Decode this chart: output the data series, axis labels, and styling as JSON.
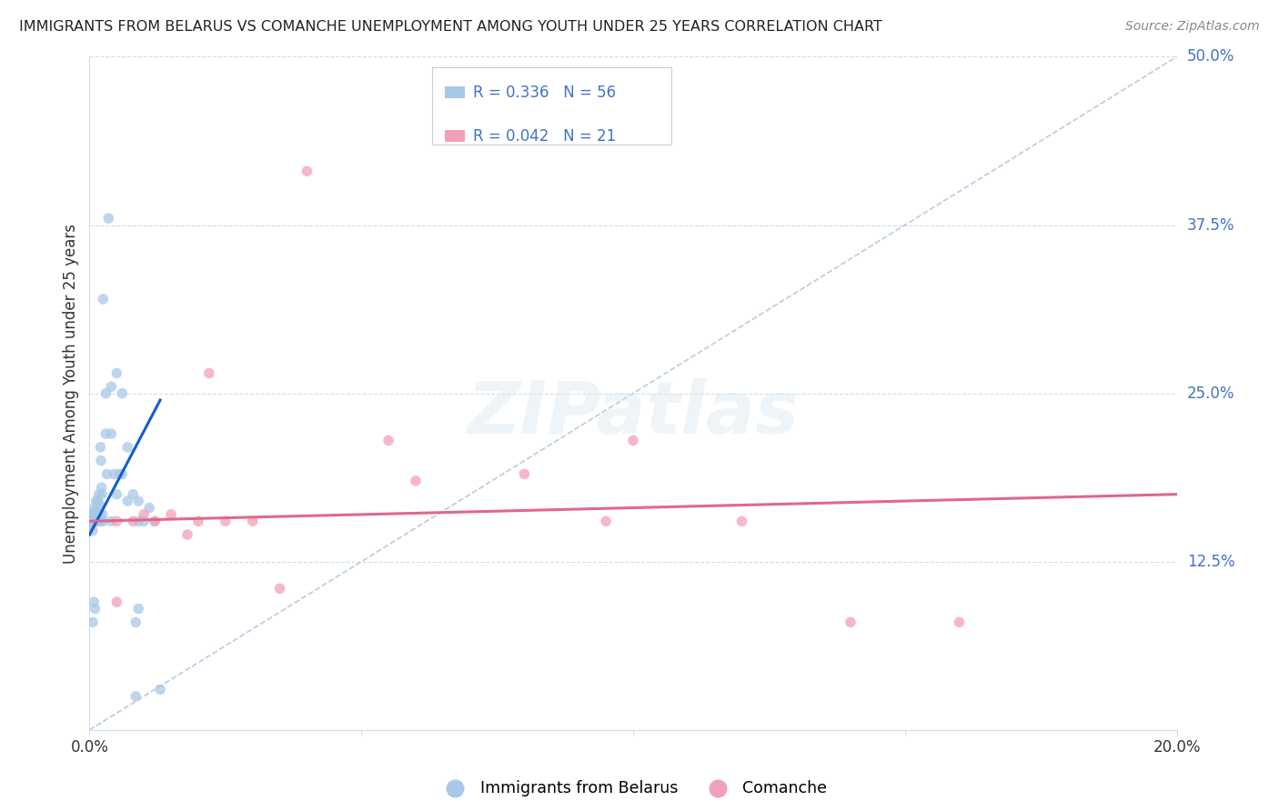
{
  "title": "IMMIGRANTS FROM BELARUS VS COMANCHE UNEMPLOYMENT AMONG YOUTH UNDER 25 YEARS CORRELATION CHART",
  "source": "Source: ZipAtlas.com",
  "ylabel": "Unemployment Among Youth under 25 years",
  "watermark": "ZIPatlas",
  "legend1_label": "Immigrants from Belarus",
  "legend2_label": "Comanche",
  "r1": 0.336,
  "n1": 56,
  "r2": 0.042,
  "n2": 21,
  "color1": "#a8c8e8",
  "color2": "#f2a0b8",
  "trendline1_color": "#1060c8",
  "trendline2_color": "#e06888",
  "diagonal_color": "#b8cce0",
  "xlim": [
    0.0,
    0.2
  ],
  "ylim": [
    0.0,
    0.5
  ],
  "blue_x": [
    0.0002,
    0.0003,
    0.0004,
    0.0005,
    0.0006,
    0.0007,
    0.0008,
    0.0009,
    0.001,
    0.0011,
    0.0012,
    0.0013,
    0.0014,
    0.0015,
    0.0016,
    0.0017,
    0.0018,
    0.0019,
    0.002,
    0.0021,
    0.0022,
    0.0023,
    0.0024,
    0.0025,
    0.003,
    0.003,
    0.0032,
    0.0035,
    0.004,
    0.004,
    0.0045,
    0.005,
    0.005,
    0.0055,
    0.006,
    0.006,
    0.007,
    0.007,
    0.008,
    0.0085,
    0.009,
    0.009,
    0.01,
    0.011,
    0.012,
    0.013,
    0.0085,
    0.004,
    0.0025,
    0.002,
    0.0015,
    0.001,
    0.0008,
    0.0006,
    0.0004,
    0.009
  ],
  "blue_y": [
    0.155,
    0.158,
    0.152,
    0.16,
    0.148,
    0.157,
    0.162,
    0.155,
    0.165,
    0.158,
    0.17,
    0.162,
    0.155,
    0.17,
    0.16,
    0.175,
    0.168,
    0.16,
    0.21,
    0.2,
    0.18,
    0.175,
    0.16,
    0.32,
    0.25,
    0.22,
    0.19,
    0.38,
    0.255,
    0.22,
    0.19,
    0.265,
    0.175,
    0.19,
    0.25,
    0.19,
    0.17,
    0.21,
    0.175,
    0.08,
    0.17,
    0.155,
    0.155,
    0.165,
    0.155,
    0.03,
    0.025,
    0.155,
    0.155,
    0.155,
    0.155,
    0.09,
    0.095,
    0.08,
    0.155,
    0.09
  ],
  "pink_x": [
    0.005,
    0.008,
    0.012,
    0.015,
    0.018,
    0.022,
    0.025,
    0.03,
    0.04,
    0.055,
    0.06,
    0.08,
    0.095,
    0.1,
    0.12,
    0.14,
    0.16,
    0.005,
    0.01,
    0.02,
    0.035
  ],
  "pink_y": [
    0.155,
    0.155,
    0.155,
    0.16,
    0.145,
    0.265,
    0.155,
    0.155,
    0.415,
    0.215,
    0.185,
    0.19,
    0.155,
    0.215,
    0.155,
    0.08,
    0.08,
    0.095,
    0.16,
    0.155,
    0.105
  ]
}
